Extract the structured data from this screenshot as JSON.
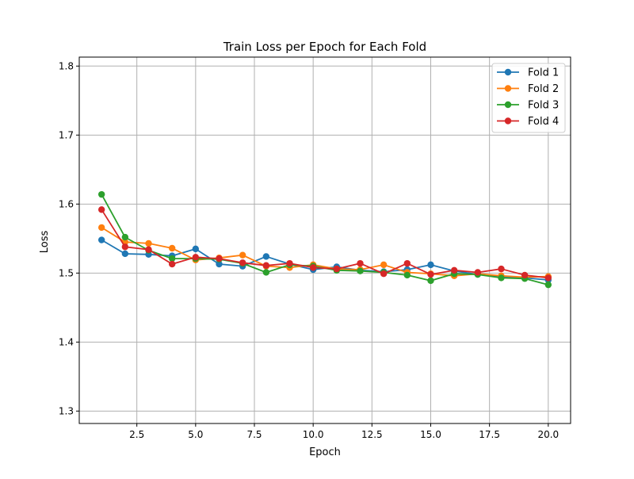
{
  "chart_data": {
    "type": "line",
    "title": "Train Loss per Epoch for Each Fold",
    "xlabel": "Epoch",
    "ylabel": "Loss",
    "xlim": [
      0.05,
      20.95
    ],
    "ylim": [
      1.282,
      1.813
    ],
    "xticks": [
      2.5,
      5.0,
      7.5,
      10.0,
      12.5,
      15.0,
      17.5,
      20.0
    ],
    "xtick_labels": [
      "2.5",
      "5.0",
      "7.5",
      "10.0",
      "12.5",
      "15.0",
      "17.5",
      "20.0"
    ],
    "yticks": [
      1.3,
      1.4,
      1.5,
      1.6,
      1.7,
      1.8
    ],
    "ytick_labels": [
      "1.3",
      "1.4",
      "1.5",
      "1.6",
      "1.7",
      "1.8"
    ],
    "grid": true,
    "legend_position": "top-right",
    "x": [
      1,
      2,
      3,
      4,
      5,
      6,
      7,
      8,
      9,
      10,
      11,
      12,
      13,
      14,
      15,
      16,
      17,
      18,
      19,
      20
    ],
    "series": [
      {
        "name": "Fold 1",
        "color": "#1f77b4",
        "values": [
          1.548,
          1.528,
          1.527,
          1.525,
          1.535,
          1.513,
          1.51,
          1.524,
          1.513,
          1.505,
          1.509,
          1.504,
          1.502,
          1.505,
          1.512,
          1.503,
          1.498,
          1.494,
          1.493,
          1.49
        ]
      },
      {
        "name": "Fold 2",
        "color": "#ff7f0e",
        "values": [
          1.566,
          1.545,
          1.543,
          1.536,
          1.519,
          1.522,
          1.526,
          1.51,
          1.508,
          1.512,
          1.506,
          1.505,
          1.512,
          1.501,
          1.499,
          1.496,
          1.499,
          1.496,
          1.494,
          1.495
        ]
      },
      {
        "name": "Fold 3",
        "color": "#2ca02c",
        "values": [
          1.614,
          1.552,
          1.533,
          1.521,
          1.521,
          1.52,
          1.514,
          1.501,
          1.512,
          1.51,
          1.504,
          1.503,
          1.501,
          1.497,
          1.489,
          1.499,
          1.498,
          1.493,
          1.492,
          1.483
        ]
      },
      {
        "name": "Fold 4",
        "color": "#d62728",
        "values": [
          1.592,
          1.538,
          1.534,
          1.513,
          1.523,
          1.521,
          1.515,
          1.511,
          1.514,
          1.508,
          1.506,
          1.514,
          1.499,
          1.514,
          1.498,
          1.504,
          1.501,
          1.506,
          1.497,
          1.493
        ]
      }
    ]
  }
}
